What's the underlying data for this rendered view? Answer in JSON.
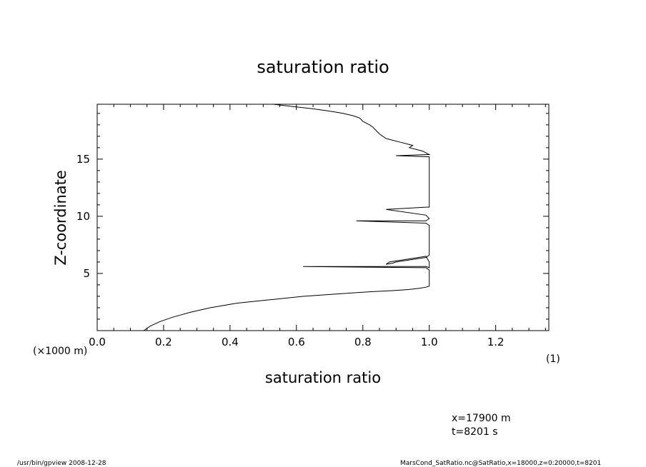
{
  "chart_data": {
    "type": "line",
    "title": "saturation ratio",
    "xlabel": "saturation ratio",
    "ylabel": "Z-coordinate",
    "x_unit_label": "(1)",
    "y_unit_label": "(×1000 m)",
    "xlim": [
      0.0,
      1.36
    ],
    "ylim": [
      0.0,
      19.8
    ],
    "x_ticks": [
      "0.0",
      "0.2",
      "0.4",
      "0.6",
      "0.8",
      "1.0",
      "1.2"
    ],
    "y_ticks": [
      "5",
      "10",
      "15"
    ],
    "grid": false,
    "legend": "none",
    "series": [
      {
        "x": [
          0.14,
          0.16,
          0.19,
          0.23,
          0.28,
          0.34,
          0.42,
          0.52,
          0.62,
          0.72,
          0.82,
          0.89,
          0.94,
          0.97,
          0.99,
          1.0,
          1.0,
          0.99,
          0.62,
          0.99,
          1.0,
          1.0,
          0.99,
          0.88,
          0.87,
          0.89,
          0.9,
          0.99,
          1.0,
          1.0,
          0.99,
          0.78,
          0.99,
          1.0,
          0.99,
          0.87,
          0.99,
          1.0,
          1.0,
          1.0,
          0.9,
          1.0,
          0.98,
          0.94,
          0.95,
          0.91,
          0.87,
          0.85,
          0.83,
          0.82,
          0.8,
          0.79,
          0.77,
          0.74,
          0.7,
          0.65,
          0.59,
          0.53
        ],
        "y": [
          0.0,
          0.4,
          0.8,
          1.2,
          1.6,
          2.0,
          2.4,
          2.7,
          3.0,
          3.2,
          3.4,
          3.5,
          3.6,
          3.7,
          3.8,
          3.9,
          5.3,
          5.5,
          5.6,
          5.6,
          5.5,
          6.0,
          6.5,
          6.0,
          5.8,
          5.9,
          6.0,
          6.4,
          6.6,
          9.2,
          9.4,
          9.6,
          9.6,
          9.8,
          10.1,
          10.6,
          10.8,
          10.8,
          15.0,
          15.2,
          15.3,
          15.4,
          15.7,
          16.0,
          16.2,
          16.5,
          16.8,
          17.2,
          17.8,
          18.0,
          18.3,
          18.6,
          18.8,
          19.0,
          19.2,
          19.4,
          19.6,
          19.8
        ]
      }
    ]
  },
  "annotations": {
    "x_position": "x=17900  m",
    "t_position": "t=8201  s"
  },
  "footer": {
    "left": "/usr/bin/gpview   2008-12-28",
    "right": "MarsCond_SatRatio.nc@SatRatio,x=18000,z=0:20000,t=8201"
  }
}
